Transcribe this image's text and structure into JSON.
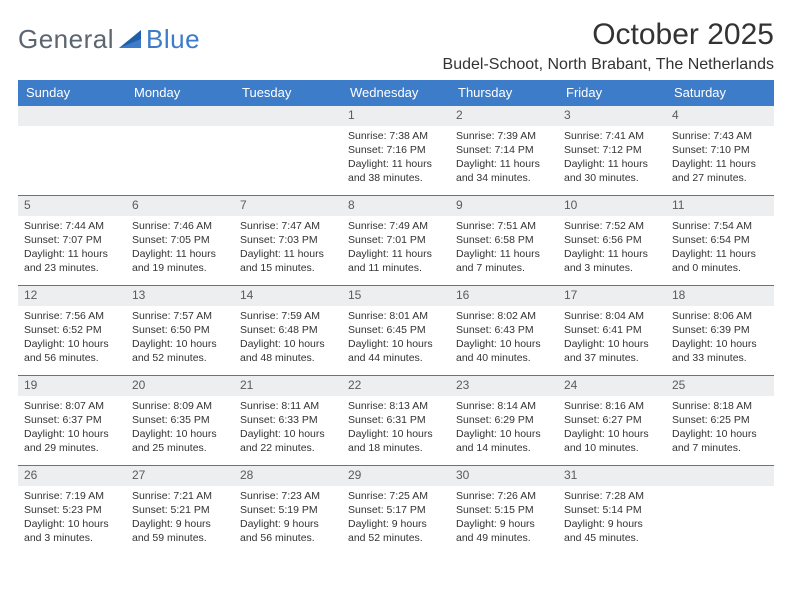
{
  "brand": {
    "part1": "General",
    "part2": "Blue"
  },
  "title": "October 2025",
  "location": "Budel-Schoot, North Brabant, The Netherlands",
  "colors": {
    "accent": "#3d7cc9",
    "band": "#eceeef",
    "text": "#333333",
    "brand_gray": "#5c6670"
  },
  "dayNames": [
    "Sunday",
    "Monday",
    "Tuesday",
    "Wednesday",
    "Thursday",
    "Friday",
    "Saturday"
  ],
  "calendar": {
    "type": "table",
    "columns": 7,
    "weeks": [
      [
        {
          "num": "",
          "lines": []
        },
        {
          "num": "",
          "lines": []
        },
        {
          "num": "",
          "lines": []
        },
        {
          "num": "1",
          "lines": [
            "Sunrise: 7:38 AM",
            "Sunset: 7:16 PM",
            "Daylight: 11 hours and 38 minutes."
          ]
        },
        {
          "num": "2",
          "lines": [
            "Sunrise: 7:39 AM",
            "Sunset: 7:14 PM",
            "Daylight: 11 hours and 34 minutes."
          ]
        },
        {
          "num": "3",
          "lines": [
            "Sunrise: 7:41 AM",
            "Sunset: 7:12 PM",
            "Daylight: 11 hours and 30 minutes."
          ]
        },
        {
          "num": "4",
          "lines": [
            "Sunrise: 7:43 AM",
            "Sunset: 7:10 PM",
            "Daylight: 11 hours and 27 minutes."
          ]
        }
      ],
      [
        {
          "num": "5",
          "lines": [
            "Sunrise: 7:44 AM",
            "Sunset: 7:07 PM",
            "Daylight: 11 hours and 23 minutes."
          ]
        },
        {
          "num": "6",
          "lines": [
            "Sunrise: 7:46 AM",
            "Sunset: 7:05 PM",
            "Daylight: 11 hours and 19 minutes."
          ]
        },
        {
          "num": "7",
          "lines": [
            "Sunrise: 7:47 AM",
            "Sunset: 7:03 PM",
            "Daylight: 11 hours and 15 minutes."
          ]
        },
        {
          "num": "8",
          "lines": [
            "Sunrise: 7:49 AM",
            "Sunset: 7:01 PM",
            "Daylight: 11 hours and 11 minutes."
          ]
        },
        {
          "num": "9",
          "lines": [
            "Sunrise: 7:51 AM",
            "Sunset: 6:58 PM",
            "Daylight: 11 hours and 7 minutes."
          ]
        },
        {
          "num": "10",
          "lines": [
            "Sunrise: 7:52 AM",
            "Sunset: 6:56 PM",
            "Daylight: 11 hours and 3 minutes."
          ]
        },
        {
          "num": "11",
          "lines": [
            "Sunrise: 7:54 AM",
            "Sunset: 6:54 PM",
            "Daylight: 11 hours and 0 minutes."
          ]
        }
      ],
      [
        {
          "num": "12",
          "lines": [
            "Sunrise: 7:56 AM",
            "Sunset: 6:52 PM",
            "Daylight: 10 hours and 56 minutes."
          ]
        },
        {
          "num": "13",
          "lines": [
            "Sunrise: 7:57 AM",
            "Sunset: 6:50 PM",
            "Daylight: 10 hours and 52 minutes."
          ]
        },
        {
          "num": "14",
          "lines": [
            "Sunrise: 7:59 AM",
            "Sunset: 6:48 PM",
            "Daylight: 10 hours and 48 minutes."
          ]
        },
        {
          "num": "15",
          "lines": [
            "Sunrise: 8:01 AM",
            "Sunset: 6:45 PM",
            "Daylight: 10 hours and 44 minutes."
          ]
        },
        {
          "num": "16",
          "lines": [
            "Sunrise: 8:02 AM",
            "Sunset: 6:43 PM",
            "Daylight: 10 hours and 40 minutes."
          ]
        },
        {
          "num": "17",
          "lines": [
            "Sunrise: 8:04 AM",
            "Sunset: 6:41 PM",
            "Daylight: 10 hours and 37 minutes."
          ]
        },
        {
          "num": "18",
          "lines": [
            "Sunrise: 8:06 AM",
            "Sunset: 6:39 PM",
            "Daylight: 10 hours and 33 minutes."
          ]
        }
      ],
      [
        {
          "num": "19",
          "lines": [
            "Sunrise: 8:07 AM",
            "Sunset: 6:37 PM",
            "Daylight: 10 hours and 29 minutes."
          ]
        },
        {
          "num": "20",
          "lines": [
            "Sunrise: 8:09 AM",
            "Sunset: 6:35 PM",
            "Daylight: 10 hours and 25 minutes."
          ]
        },
        {
          "num": "21",
          "lines": [
            "Sunrise: 8:11 AM",
            "Sunset: 6:33 PM",
            "Daylight: 10 hours and 22 minutes."
          ]
        },
        {
          "num": "22",
          "lines": [
            "Sunrise: 8:13 AM",
            "Sunset: 6:31 PM",
            "Daylight: 10 hours and 18 minutes."
          ]
        },
        {
          "num": "23",
          "lines": [
            "Sunrise: 8:14 AM",
            "Sunset: 6:29 PM",
            "Daylight: 10 hours and 14 minutes."
          ]
        },
        {
          "num": "24",
          "lines": [
            "Sunrise: 8:16 AM",
            "Sunset: 6:27 PM",
            "Daylight: 10 hours and 10 minutes."
          ]
        },
        {
          "num": "25",
          "lines": [
            "Sunrise: 8:18 AM",
            "Sunset: 6:25 PM",
            "Daylight: 10 hours and 7 minutes."
          ]
        }
      ],
      [
        {
          "num": "26",
          "lines": [
            "Sunrise: 7:19 AM",
            "Sunset: 5:23 PM",
            "Daylight: 10 hours and 3 minutes."
          ]
        },
        {
          "num": "27",
          "lines": [
            "Sunrise: 7:21 AM",
            "Sunset: 5:21 PM",
            "Daylight: 9 hours and 59 minutes."
          ]
        },
        {
          "num": "28",
          "lines": [
            "Sunrise: 7:23 AM",
            "Sunset: 5:19 PM",
            "Daylight: 9 hours and 56 minutes."
          ]
        },
        {
          "num": "29",
          "lines": [
            "Sunrise: 7:25 AM",
            "Sunset: 5:17 PM",
            "Daylight: 9 hours and 52 minutes."
          ]
        },
        {
          "num": "30",
          "lines": [
            "Sunrise: 7:26 AM",
            "Sunset: 5:15 PM",
            "Daylight: 9 hours and 49 minutes."
          ]
        },
        {
          "num": "31",
          "lines": [
            "Sunrise: 7:28 AM",
            "Sunset: 5:14 PM",
            "Daylight: 9 hours and 45 minutes."
          ]
        },
        {
          "num": "",
          "lines": []
        }
      ]
    ]
  }
}
